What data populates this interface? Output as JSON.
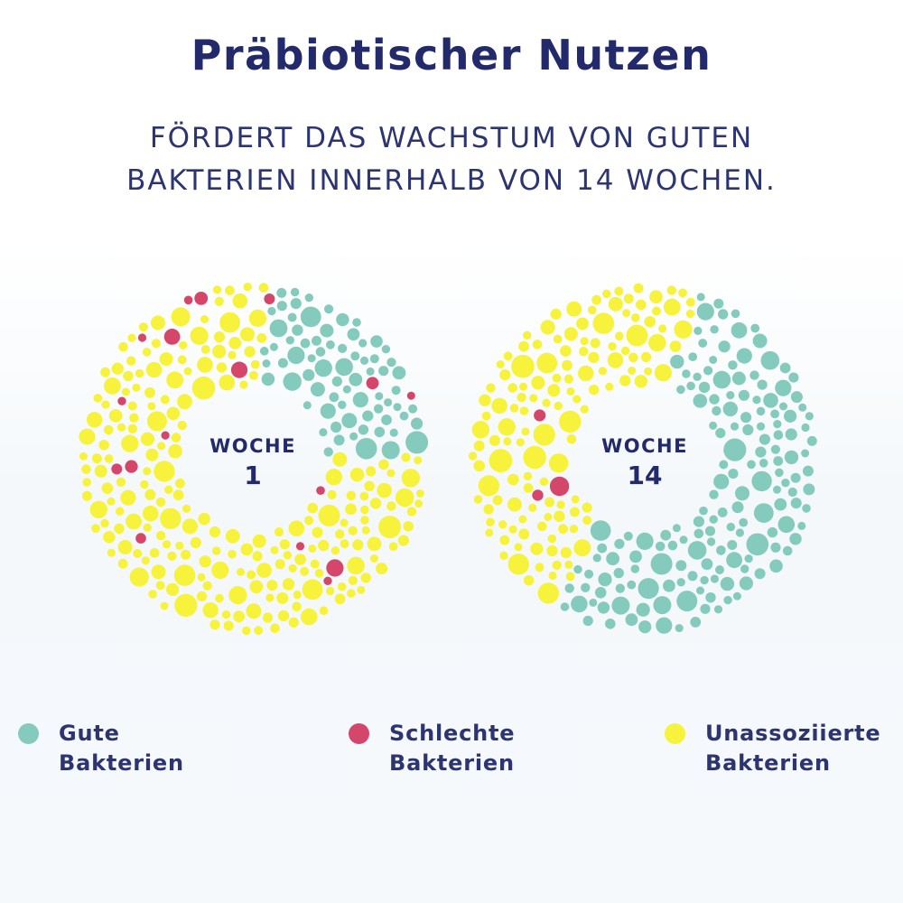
{
  "title": "Präbiotischer Nutzen",
  "subtitle": {
    "line1": "FÖRDERT DAS WACHSTUM VON GUTEN",
    "line2": "BAKTERIEN INNERHALB VON 14 WOCHEN."
  },
  "colors": {
    "good": "#84cbbd",
    "bad": "#d4476b",
    "unassociated": "#f7f23c",
    "text": "#222a6b"
  },
  "rings": [
    {
      "label_line1": "WOCHE",
      "label_line2": "1",
      "good_fraction": 0.15,
      "bad_count": 17
    },
    {
      "label_line1": "WOCHE",
      "label_line2": "14",
      "good_fraction": 0.5,
      "bad_count": 3
    }
  ],
  "legend": [
    {
      "line1": "Gute",
      "line2": "Bakterien",
      "color": "#84cbbd"
    },
    {
      "line1": "Schlechte",
      "line2": "Bakterien",
      "color": "#d4476b"
    },
    {
      "line1": "Unassoziierte",
      "line2": "Bakterien",
      "color": "#f7f23c"
    }
  ]
}
